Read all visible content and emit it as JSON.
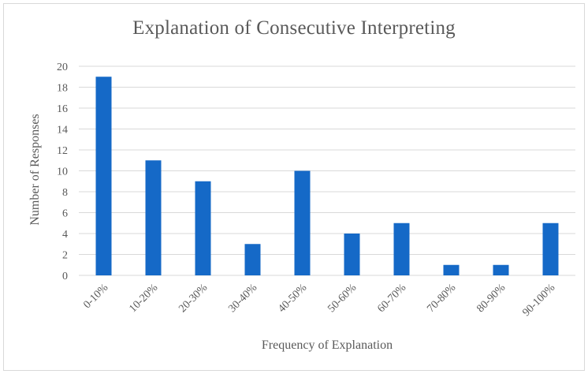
{
  "chart_data": {
    "type": "bar",
    "title": "Explanation  of Consecutive Interpreting",
    "xlabel": "Frequency of Explanation",
    "ylabel": "Number of Responses",
    "categories": [
      "0-10%",
      "10-20%",
      "20-30%",
      "30-40%",
      "40-50%",
      "50-60%",
      "60-70%",
      "70-80%",
      "80-90%",
      "90-100%"
    ],
    "values": [
      19,
      11,
      9,
      3,
      10,
      4,
      5,
      1,
      1,
      5
    ],
    "ylim": [
      0,
      20
    ],
    "yticks": [
      0,
      2,
      4,
      6,
      8,
      10,
      12,
      14,
      16,
      18,
      20
    ],
    "grid": true,
    "legend": "none",
    "colors": {
      "bar": "#1569c7",
      "grid": "#d9d9d9",
      "text": "#595959"
    }
  }
}
